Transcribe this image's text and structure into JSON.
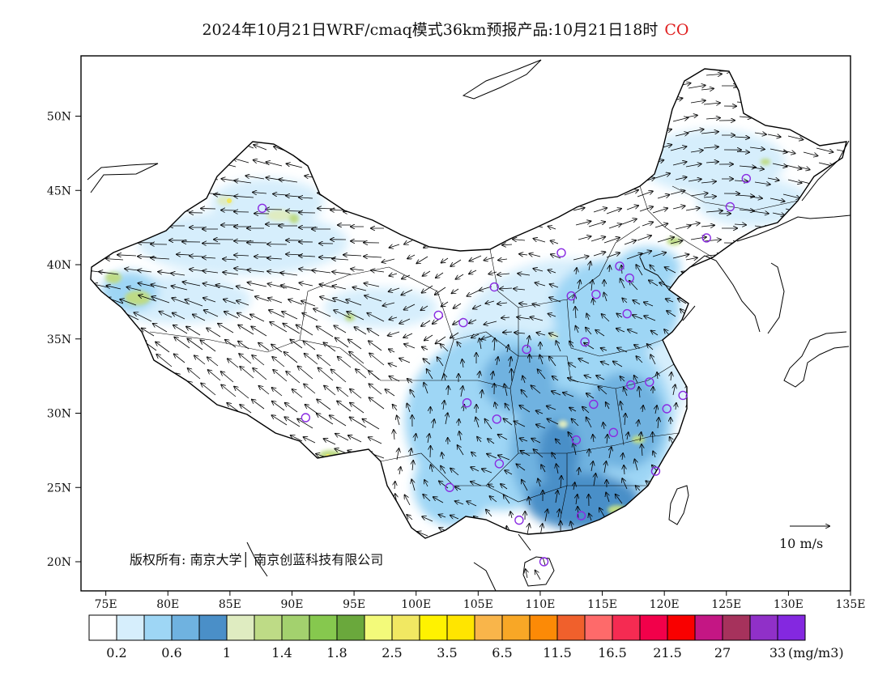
{
  "title": "2024年10月21日WRF/cmaq模式36km预报产品:10月21日18时",
  "species": "CO",
  "copyright": "版权所有: 南京大学│ 南京创蓝科技有限公司",
  "wind_reference": "10 m/s",
  "latitude_ticks": [
    "20N",
    "25N",
    "30N",
    "35N",
    "40N",
    "45N",
    "50N"
  ],
  "longitude_ticks": [
    "75E",
    "80E",
    "85E",
    "90E",
    "95E",
    "100E",
    "105E",
    "110E",
    "115E",
    "120E",
    "125E",
    "130E",
    "135E"
  ],
  "colorbar": {
    "unit": "(mg/m3)",
    "labels": [
      "0.2",
      "0.6",
      "1",
      "1.4",
      "1.8",
      "2.5",
      "3.5",
      "6.5",
      "11.5",
      "16.5",
      "21.5",
      "27",
      "33"
    ],
    "colors": [
      "#ffffff",
      "#d6eefc",
      "#9ed6f5",
      "#6fb2e0",
      "#4a8fc8",
      "#dfecc1",
      "#bedb86",
      "#a3d16e",
      "#86c84e",
      "#6aa83c",
      "#f3fa7a",
      "#f1e862",
      "#fff200",
      "#ffe500",
      "#f9b54a",
      "#f8a726",
      "#fc8a06",
      "#f0602c",
      "#fe6a6a",
      "#f52b52",
      "#f2004a",
      "#f90000",
      "#c41684",
      "#a6325c",
      "#9030c8",
      "#8428e0"
    ]
  },
  "stations": [
    {
      "lon": 87.6,
      "lat": 43.8
    },
    {
      "lon": 91.1,
      "lat": 29.7
    },
    {
      "lon": 101.8,
      "lat": 36.6
    },
    {
      "lon": 103.8,
      "lat": 36.1
    },
    {
      "lon": 106.3,
      "lat": 38.5
    },
    {
      "lon": 111.7,
      "lat": 40.8
    },
    {
      "lon": 116.4,
      "lat": 39.9
    },
    {
      "lon": 117.2,
      "lat": 39.1
    },
    {
      "lon": 114.5,
      "lat": 38.0
    },
    {
      "lon": 112.5,
      "lat": 37.9
    },
    {
      "lon": 117.0,
      "lat": 36.7
    },
    {
      "lon": 113.6,
      "lat": 34.8
    },
    {
      "lon": 108.9,
      "lat": 34.3
    },
    {
      "lon": 104.1,
      "lat": 30.7
    },
    {
      "lon": 106.5,
      "lat": 29.6
    },
    {
      "lon": 114.3,
      "lat": 30.6
    },
    {
      "lon": 112.9,
      "lat": 28.2
    },
    {
      "lon": 115.9,
      "lat": 28.7
    },
    {
      "lon": 117.3,
      "lat": 31.9
    },
    {
      "lon": 118.8,
      "lat": 32.1
    },
    {
      "lon": 120.2,
      "lat": 30.3
    },
    {
      "lon": 121.5,
      "lat": 31.2
    },
    {
      "lon": 119.3,
      "lat": 26.1
    },
    {
      "lon": 113.3,
      "lat": 23.1
    },
    {
      "lon": 108.3,
      "lat": 22.8
    },
    {
      "lon": 110.3,
      "lat": 20.0
    },
    {
      "lon": 106.7,
      "lat": 26.6
    },
    {
      "lon": 102.7,
      "lat": 25.0
    },
    {
      "lon": 123.4,
      "lat": 41.8
    },
    {
      "lon": 125.3,
      "lat": 43.9
    },
    {
      "lon": 126.6,
      "lat": 45.8
    }
  ]
}
